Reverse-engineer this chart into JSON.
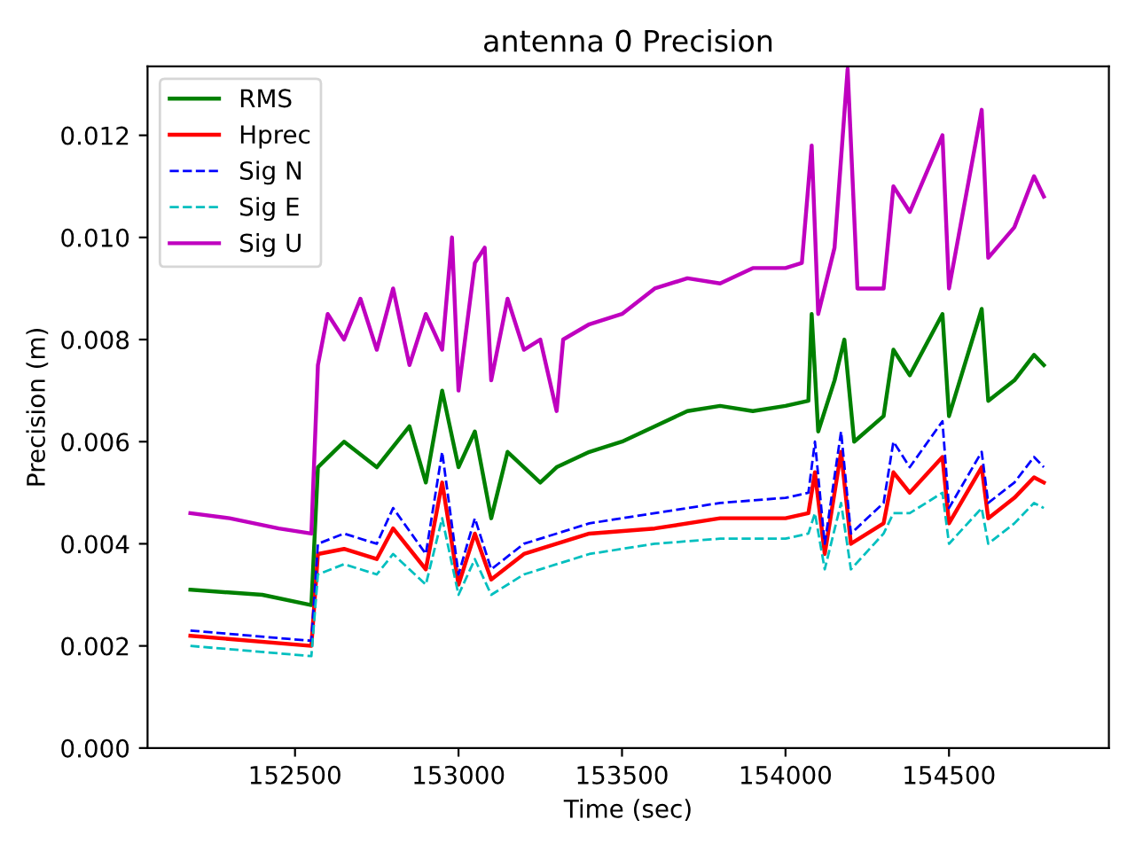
{
  "chart_data": {
    "type": "line",
    "title": "antenna 0 Precision",
    "xlabel": "Time (sec)",
    "ylabel": "Precision (m)",
    "xlim": [
      152049,
      154989
    ],
    "ylim": [
      0,
      0.01335
    ],
    "xticks": [
      152500,
      153000,
      153500,
      154000,
      154500
    ],
    "yticks": [
      {
        "value": 0,
        "label": "0.000"
      },
      {
        "value": 0.002,
        "label": "0.002"
      },
      {
        "value": 0.004,
        "label": "0.004"
      },
      {
        "value": 0.006,
        "label": "0.006"
      },
      {
        "value": 0.008,
        "label": "0.008"
      },
      {
        "value": 0.01,
        "label": "0.010"
      },
      {
        "value": 0.012,
        "label": "0.012"
      }
    ],
    "grid": false,
    "legend": "top left",
    "marker": "none",
    "series": [
      {
        "name": "RMS",
        "color": "#008000",
        "line_style": "solid",
        "x": [
          152180,
          152400,
          152550,
          152570,
          152650,
          152750,
          152850,
          152900,
          152950,
          153000,
          153050,
          153100,
          153150,
          153250,
          153300,
          153400,
          153500,
          153600,
          153700,
          153800,
          153900,
          154000,
          154070,
          154080,
          154100,
          154150,
          154180,
          154210,
          154300,
          154330,
          154380,
          154480,
          154500,
          154600,
          154620,
          154700,
          154760,
          154790
        ],
        "values": [
          0.0031,
          0.003,
          0.0028,
          0.0055,
          0.006,
          0.0055,
          0.0063,
          0.0052,
          0.007,
          0.0055,
          0.0062,
          0.0045,
          0.0058,
          0.0052,
          0.0055,
          0.0058,
          0.006,
          0.0063,
          0.0066,
          0.0067,
          0.0066,
          0.0067,
          0.0068,
          0.0085,
          0.0062,
          0.0072,
          0.008,
          0.006,
          0.0065,
          0.0078,
          0.0073,
          0.0085,
          0.0065,
          0.0086,
          0.0068,
          0.0072,
          0.0077,
          0.0075
        ]
      },
      {
        "name": "Hprec",
        "color": "#ff0000",
        "line_style": "solid",
        "x": [
          152180,
          152550,
          152570,
          152650,
          152750,
          152800,
          152900,
          152950,
          153000,
          153050,
          153100,
          153200,
          153400,
          153600,
          153800,
          154000,
          154070,
          154090,
          154120,
          154170,
          154200,
          154300,
          154330,
          154380,
          154480,
          154500,
          154600,
          154620,
          154700,
          154760,
          154790
        ],
        "values": [
          0.0022,
          0.002,
          0.0038,
          0.0039,
          0.0037,
          0.0043,
          0.0035,
          0.0052,
          0.0032,
          0.0042,
          0.0033,
          0.0038,
          0.0042,
          0.0043,
          0.0045,
          0.0045,
          0.0046,
          0.0054,
          0.0038,
          0.0058,
          0.004,
          0.0044,
          0.0054,
          0.005,
          0.0057,
          0.0044,
          0.0055,
          0.0045,
          0.0049,
          0.0053,
          0.0052
        ]
      },
      {
        "name": "Sig N",
        "color": "#0000ff",
        "line_style": "dashed",
        "x": [
          152180,
          152550,
          152570,
          152650,
          152750,
          152800,
          152900,
          152950,
          153000,
          153050,
          153100,
          153200,
          153400,
          153600,
          153800,
          154000,
          154070,
          154090,
          154120,
          154170,
          154200,
          154300,
          154330,
          154380,
          154480,
          154500,
          154600,
          154620,
          154700,
          154760,
          154790
        ],
        "values": [
          0.0023,
          0.0021,
          0.004,
          0.0042,
          0.004,
          0.0047,
          0.0038,
          0.0058,
          0.0034,
          0.0045,
          0.0035,
          0.004,
          0.0044,
          0.0046,
          0.0048,
          0.0049,
          0.005,
          0.006,
          0.004,
          0.0062,
          0.0042,
          0.0048,
          0.006,
          0.0055,
          0.0064,
          0.0047,
          0.0058,
          0.0048,
          0.0052,
          0.0057,
          0.0055
        ]
      },
      {
        "name": "Sig E",
        "color": "#00bfbf",
        "line_style": "dashed",
        "x": [
          152180,
          152550,
          152570,
          152650,
          152750,
          152800,
          152900,
          152950,
          153000,
          153050,
          153100,
          153200,
          153400,
          153600,
          153800,
          154000,
          154070,
          154090,
          154120,
          154170,
          154200,
          154300,
          154330,
          154380,
          154480,
          154500,
          154600,
          154620,
          154700,
          154760,
          154790
        ],
        "values": [
          0.002,
          0.0018,
          0.0034,
          0.0036,
          0.0034,
          0.0038,
          0.0032,
          0.0045,
          0.003,
          0.0037,
          0.003,
          0.0034,
          0.0038,
          0.004,
          0.0041,
          0.0041,
          0.0042,
          0.0046,
          0.0035,
          0.0048,
          0.0035,
          0.0042,
          0.0046,
          0.0046,
          0.005,
          0.004,
          0.0047,
          0.004,
          0.0044,
          0.0048,
          0.0047
        ]
      },
      {
        "name": "Sig U",
        "color": "#bf00bf",
        "line_style": "solid",
        "x": [
          152180,
          152300,
          152450,
          152550,
          152570,
          152600,
          152650,
          152700,
          152750,
          152800,
          152850,
          152900,
          152950,
          152980,
          153000,
          153050,
          153080,
          153100,
          153150,
          153200,
          153250,
          153300,
          153320,
          153400,
          153500,
          153600,
          153700,
          153800,
          153900,
          154000,
          154050,
          154080,
          154100,
          154150,
          154190,
          154220,
          154300,
          154330,
          154380,
          154480,
          154500,
          154600,
          154620,
          154700,
          154760,
          154790
        ],
        "values": [
          0.0046,
          0.0045,
          0.0043,
          0.0042,
          0.0075,
          0.0085,
          0.008,
          0.0088,
          0.0078,
          0.009,
          0.0075,
          0.0085,
          0.0078,
          0.01,
          0.007,
          0.0095,
          0.0098,
          0.0072,
          0.0088,
          0.0078,
          0.008,
          0.0066,
          0.008,
          0.0083,
          0.0085,
          0.009,
          0.0092,
          0.0091,
          0.0094,
          0.0094,
          0.0095,
          0.0118,
          0.0085,
          0.0098,
          0.0133,
          0.009,
          0.009,
          0.011,
          0.0105,
          0.012,
          0.009,
          0.0125,
          0.0096,
          0.0102,
          0.0112,
          0.0108
        ]
      }
    ]
  }
}
